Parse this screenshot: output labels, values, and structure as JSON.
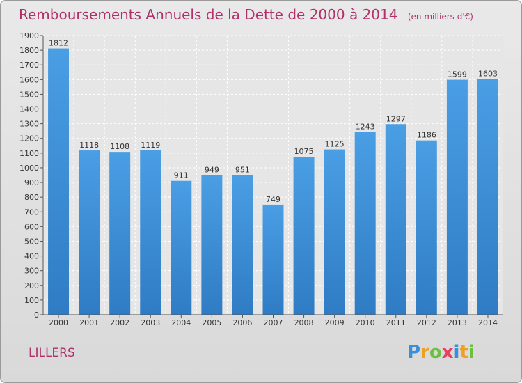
{
  "title": "Remboursements Annuels de la Dette de 2000 à 2014",
  "unit_label": "(en milliers d'€)",
  "city": "LILLERS",
  "logo": {
    "letters": [
      "P",
      "r",
      "o",
      "x",
      "i",
      "t",
      "i"
    ],
    "colors": [
      "#3a8fd8",
      "#f0a020",
      "#6cc040",
      "#e84060",
      "#3a8fd8",
      "#f0a020",
      "#6cc040"
    ]
  },
  "colors": {
    "bar": "#4a9ee4",
    "bar_dark": "#2f7cc4",
    "title": "#b0306a"
  },
  "chart_data": {
    "type": "bar",
    "categories": [
      "2000",
      "2001",
      "2002",
      "2003",
      "2004",
      "2005",
      "2006",
      "2007",
      "2008",
      "2009",
      "2010",
      "2011",
      "2012",
      "2013",
      "2014"
    ],
    "values": [
      1812,
      1118,
      1108,
      1119,
      911,
      949,
      951,
      749,
      1075,
      1125,
      1243,
      1297,
      1186,
      1599,
      1603
    ],
    "ylim": [
      0,
      1900
    ],
    "yticks": [
      0,
      100,
      200,
      300,
      400,
      500,
      600,
      700,
      800,
      900,
      1000,
      1100,
      1200,
      1300,
      1400,
      1500,
      1600,
      1700,
      1800,
      1900
    ],
    "grid": true
  }
}
